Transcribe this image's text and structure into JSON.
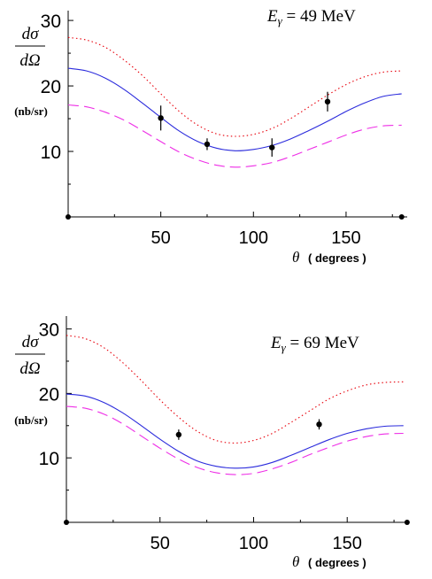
{
  "chart_data": [
    {
      "type": "line",
      "energy_label": {
        "symbol": "E",
        "subscript": "γ",
        "text": " = 49 MeV"
      },
      "ylabel": {
        "numerator": "dσ",
        "denominator": "dΩ",
        "unit": "(nb/sr)"
      },
      "xlabel": {
        "symbol": "θ",
        "text": "( degrees )"
      },
      "xlim": [
        0,
        183
      ],
      "ylim": [
        0,
        31.5
      ],
      "xticks": [
        50,
        100,
        150
      ],
      "xticks_minor": [
        25,
        75,
        125,
        175
      ],
      "yticks": [
        10,
        20,
        30
      ],
      "yticks_minor": [
        5,
        15,
        25
      ],
      "series": [
        {
          "style": "dotted",
          "color": "#e8000b",
          "x": [
            0,
            10,
            20,
            30,
            40,
            50,
            60,
            70,
            80,
            90,
            100,
            110,
            120,
            130,
            140,
            150,
            160,
            170,
            180
          ],
          "y": [
            27.4,
            27.0,
            25.9,
            24.0,
            21.6,
            18.8,
            16.1,
            14.0,
            12.7,
            12.3,
            12.6,
            13.5,
            15.0,
            16.8,
            18.6,
            20.2,
            21.4,
            22.1,
            22.3
          ]
        },
        {
          "style": "solid",
          "color": "#2b2bdc",
          "x": [
            0,
            10,
            20,
            30,
            40,
            50,
            60,
            70,
            80,
            90,
            100,
            110,
            120,
            130,
            140,
            150,
            160,
            170,
            180
          ],
          "y": [
            22.7,
            22.3,
            21.2,
            19.5,
            17.4,
            15.2,
            13.1,
            11.5,
            10.5,
            10.1,
            10.3,
            10.9,
            11.9,
            13.2,
            14.6,
            16.1,
            17.4,
            18.4,
            18.8
          ]
        },
        {
          "style": "dashed",
          "color": "#ee2ee6",
          "x": [
            0,
            10,
            20,
            30,
            40,
            50,
            60,
            70,
            80,
            90,
            100,
            110,
            120,
            130,
            140,
            150,
            160,
            170,
            180
          ],
          "y": [
            17.1,
            16.8,
            16.0,
            14.8,
            13.2,
            11.5,
            9.9,
            8.7,
            7.9,
            7.6,
            7.8,
            8.3,
            9.2,
            10.3,
            11.4,
            12.5,
            13.4,
            13.9,
            14.0
          ]
        }
      ],
      "points": [
        {
          "x": 50,
          "y": 15.1,
          "err": 1.9
        },
        {
          "x": 75,
          "y": 11.1,
          "err": 0.9
        },
        {
          "x": 110,
          "y": 10.6,
          "err": 1.4
        },
        {
          "x": 140,
          "y": 17.6,
          "err": 1.5
        }
      ],
      "axis_dots": [
        0,
        180
      ]
    },
    {
      "type": "line",
      "energy_label": {
        "symbol": "E",
        "subscript": "γ",
        "text": " = 69 MeV"
      },
      "ylabel": {
        "numerator": "dσ",
        "denominator": "dΩ",
        "unit": "(nb/sr)"
      },
      "xlabel": {
        "symbol": "θ",
        "text": "( degrees )"
      },
      "xlim": [
        0,
        183
      ],
      "ylim": [
        0,
        32
      ],
      "xticks": [
        50,
        100,
        150
      ],
      "xticks_minor": [
        25,
        75,
        125,
        175
      ],
      "yticks": [
        10,
        20,
        30
      ],
      "yticks_minor": [
        5,
        15,
        25
      ],
      "series": [
        {
          "style": "dotted",
          "color": "#e8000b",
          "x": [
            0,
            10,
            20,
            30,
            40,
            50,
            60,
            70,
            80,
            90,
            100,
            110,
            120,
            130,
            140,
            150,
            160,
            170,
            180
          ],
          "y": [
            29.0,
            28.5,
            27.1,
            24.8,
            22.0,
            19.0,
            16.3,
            14.1,
            12.7,
            12.3,
            12.7,
            13.8,
            15.5,
            17.3,
            19.1,
            20.4,
            21.3,
            21.7,
            21.8
          ]
        },
        {
          "style": "solid",
          "color": "#2b2bdc",
          "x": [
            0,
            10,
            20,
            30,
            40,
            50,
            60,
            70,
            80,
            90,
            100,
            110,
            120,
            130,
            140,
            150,
            160,
            170,
            180
          ],
          "y": [
            19.9,
            19.6,
            18.6,
            17.0,
            15.0,
            12.9,
            11.0,
            9.5,
            8.7,
            8.4,
            8.6,
            9.3,
            10.4,
            11.6,
            12.8,
            13.8,
            14.5,
            14.9,
            15.0
          ]
        },
        {
          "style": "dashed",
          "color": "#ee2ee6",
          "x": [
            0,
            10,
            20,
            30,
            40,
            50,
            60,
            70,
            80,
            90,
            100,
            110,
            120,
            130,
            140,
            150,
            160,
            170,
            180
          ],
          "y": [
            18.0,
            17.7,
            16.8,
            15.3,
            13.4,
            11.5,
            9.8,
            8.5,
            7.7,
            7.4,
            7.6,
            8.3,
            9.3,
            10.5,
            11.6,
            12.6,
            13.3,
            13.7,
            13.8
          ]
        }
      ],
      "points": [
        {
          "x": 60,
          "y": 13.6,
          "err": 0.8
        },
        {
          "x": 135,
          "y": 15.2,
          "err": 0.8
        }
      ],
      "axis_dots": [
        0,
        182
      ]
    }
  ]
}
